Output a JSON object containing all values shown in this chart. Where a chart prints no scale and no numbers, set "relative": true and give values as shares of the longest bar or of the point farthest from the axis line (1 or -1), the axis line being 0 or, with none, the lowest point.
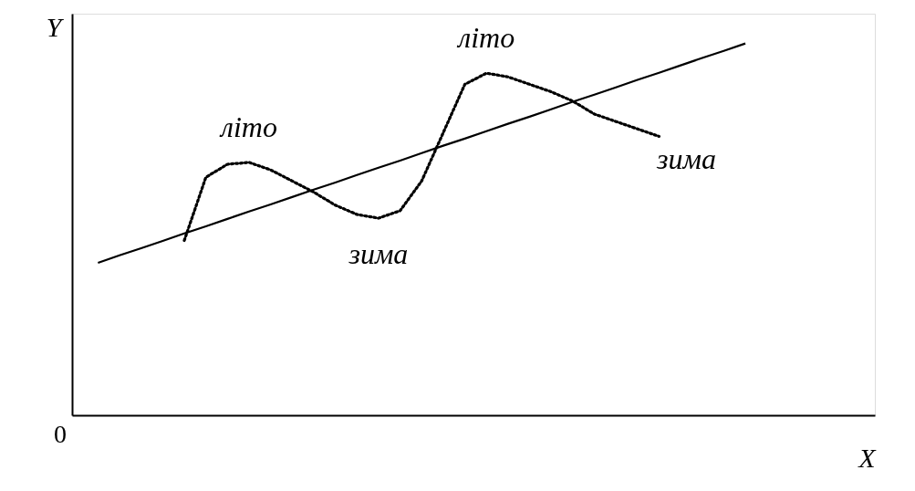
{
  "chart_data": {
    "type": "line",
    "relative": true,
    "xlabel": "X",
    "ylabel": "Y",
    "marker": "none",
    "categories": [
      null,
      null,
      null,
      null,
      null,
      null,
      null,
      null,
      null,
      null,
      null,
      null,
      null,
      null,
      null,
      null,
      null,
      null,
      null,
      null,
      null,
      null,
      null,
      null,
      null,
      null,
      null,
      null,
      null,
      null,
      null
    ],
    "series": [
      {
        "color": "#000000",
        "line_style": "solid",
        "values": [
          0.41,
          0.43,
          0.449,
          0.469,
          0.489,
          0.508,
          0.528,
          0.548,
          0.567,
          0.587,
          0.607,
          0.626,
          0.646,
          0.666,
          0.685,
          0.705,
          0.725,
          0.744,
          0.764,
          0.784,
          0.803,
          0.823,
          0.843,
          0.862,
          0.882,
          0.902,
          0.921,
          0.941,
          0.961,
          0.98,
          1.0
        ]
      },
      {
        "color": "#000000",
        "line_style": "dotted",
        "values": [
          null,
          null,
          null,
          null,
          0.47,
          0.64,
          0.675,
          0.68,
          0.66,
          0.63,
          0.6,
          0.565,
          0.54,
          0.53,
          0.55,
          0.63,
          0.76,
          0.89,
          0.92,
          0.91,
          0.89,
          0.87,
          0.845,
          0.81,
          0.79,
          0.77,
          0.75,
          null,
          null,
          null,
          null
        ]
      }
    ],
    "annotations": [
      "0",
      "літо",
      "зима",
      "літо",
      "зима"
    ]
  }
}
